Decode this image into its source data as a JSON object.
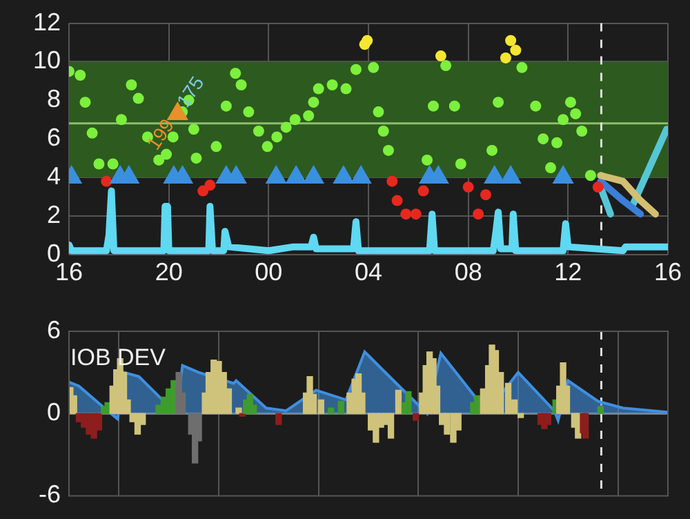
{
  "chart_data": [
    {
      "type": "scatter",
      "xlim": [
        16,
        40
      ],
      "ylim": [
        0,
        12
      ],
      "xticks": [
        {
          "value": 16,
          "label": "16"
        },
        {
          "value": 20,
          "label": "20"
        },
        {
          "value": 24,
          "label": "00"
        },
        {
          "value": 28,
          "label": "04"
        },
        {
          "value": 32,
          "label": "08"
        },
        {
          "value": 36,
          "label": "12"
        },
        {
          "value": 40,
          "label": "16"
        }
      ],
      "yticks": [
        0,
        2,
        4,
        6,
        8,
        10,
        12
      ],
      "grid": true,
      "bands": [
        {
          "axis": "y",
          "from": 4,
          "to": 10,
          "color": "#2d5a1f"
        }
      ],
      "ref_lines": [
        {
          "axis": "y",
          "value": 6.8,
          "color": "#8fbf6a"
        },
        {
          "axis": "x",
          "value": 37.33,
          "color": "#dddddd",
          "line_style": "dashed"
        }
      ],
      "annotations": [
        {
          "text": "199",
          "x": 19.7,
          "y": 6.2
        },
        {
          "text": "175",
          "x": 20.9,
          "y": 8.4
        }
      ],
      "series": [
        {
          "type": "line",
          "color": "#5fd8f2",
          "x": [
            16.0,
            16.1,
            17.5,
            17.6,
            17.7,
            17.8,
            19.8,
            19.85,
            19.95,
            20.0,
            21.6,
            21.65,
            21.75,
            22.2,
            22.25,
            22.4,
            24.0,
            25.0,
            25.7,
            25.8,
            25.9,
            27.4,
            27.5,
            27.6,
            30.45,
            30.55,
            30.65,
            33.0,
            33.1,
            33.2,
            33.3,
            33.75,
            33.8,
            33.9,
            35.8,
            35.9,
            36.0,
            38.2,
            38.3,
            40.0
          ],
          "values": [
            0.5,
            0.2,
            0.2,
            1.0,
            3.3,
            0.2,
            0.2,
            2.5,
            2.5,
            0.2,
            0.2,
            2.5,
            0.2,
            0.2,
            1.2,
            0.4,
            0.2,
            0.4,
            0.4,
            0.9,
            0.3,
            0.3,
            1.7,
            0.2,
            0.2,
            2.1,
            0.2,
            0.2,
            1.1,
            2.2,
            0.3,
            0.3,
            2.1,
            0.2,
            0.2,
            1.6,
            0.4,
            0.2,
            0.4,
            0.4
          ]
        },
        {
          "type": "scatter",
          "marker": "triangle",
          "color": "#3b8fe0",
          "x": [
            16.1,
            18.05,
            18.4,
            20.2,
            20.55,
            22.3,
            22.7,
            24.3,
            25.1,
            25.8,
            27.0,
            27.7,
            30.45,
            30.8,
            33.05,
            33.7,
            35.8
          ],
          "values": [
            4,
            4,
            4,
            4,
            4,
            4,
            4,
            4,
            4,
            4,
            4,
            4,
            4,
            4,
            4,
            4,
            4
          ]
        },
        {
          "type": "scatter",
          "marker": "triangle",
          "color": "#e8902a",
          "x": [
            20.35
          ],
          "values": [
            7.3
          ]
        },
        {
          "type": "scatter",
          "marker": "circle",
          "x": [
            16.0,
            16.45,
            16.65,
            16.93,
            17.2,
            17.5,
            17.76,
            18.1,
            18.5,
            18.78,
            19.15,
            19.6,
            19.9,
            20.17,
            20.54,
            20.8,
            21.0,
            21.1,
            21.37,
            21.65,
            21.9,
            22.3,
            22.67,
            22.9,
            23.2,
            23.6,
            23.95,
            24.33,
            24.7,
            25.06,
            25.6,
            25.8,
            26.0,
            26.55,
            27.1,
            27.5,
            27.85,
            27.95,
            28.2,
            28.4,
            28.6,
            28.8,
            28.95,
            29.15,
            29.5,
            29.9,
            30.2,
            30.35,
            30.6,
            30.9,
            31.1,
            31.45,
            31.7,
            32.0,
            32.4,
            32.7,
            32.95,
            33.2,
            33.5,
            33.7,
            33.9,
            34.15,
            34.7,
            35.0,
            35.3,
            35.55,
            35.8,
            36.1,
            36.3,
            36.55,
            36.9,
            37.2
          ],
          "values": [
            9.5,
            9.3,
            7.9,
            6.3,
            4.7,
            3.8,
            4.7,
            7.0,
            8.8,
            8.1,
            6.1,
            4.9,
            5.2,
            6.1,
            7.4,
            8.0,
            6.5,
            5.0,
            3.3,
            3.6,
            5.6,
            7.7,
            9.4,
            8.8,
            7.4,
            6.4,
            5.6,
            6.1,
            6.6,
            7.0,
            7.2,
            7.9,
            8.6,
            8.8,
            8.6,
            9.6,
            10.9,
            11.1,
            9.7,
            7.4,
            6.4,
            5.4,
            3.8,
            2.8,
            2.1,
            2.1,
            3.3,
            4.9,
            7.7,
            10.3,
            9.8,
            7.7,
            4.7,
            3.5,
            2.1,
            3.1,
            5.4,
            7.9,
            10.2,
            11.1,
            10.6,
            9.7,
            7.7,
            6.0,
            4.5,
            5.8,
            7.0,
            7.9,
            7.3,
            6.4,
            4.1,
            3.5
          ],
          "colors": [
            "#7cf03c",
            "#7cf03c",
            "#7cf03c",
            "#7cf03c",
            "#7cf03c",
            "#e8281e",
            "#7cf03c",
            "#7cf03c",
            "#7cf03c",
            "#7cf03c",
            "#7cf03c",
            "#7cf03c",
            "#7cf03c",
            "#7cf03c",
            "#7cf03c",
            "#7cf03c",
            "#7cf03c",
            "#7cf03c",
            "#e8281e",
            "#e8281e",
            "#7cf03c",
            "#7cf03c",
            "#7cf03c",
            "#7cf03c",
            "#7cf03c",
            "#7cf03c",
            "#7cf03c",
            "#7cf03c",
            "#7cf03c",
            "#7cf03c",
            "#7cf03c",
            "#7cf03c",
            "#7cf03c",
            "#7cf03c",
            "#7cf03c",
            "#7cf03c",
            "#f5e632",
            "#f5e632",
            "#7cf03c",
            "#7cf03c",
            "#7cf03c",
            "#7cf03c",
            "#e8281e",
            "#e8281e",
            "#e8281e",
            "#e8281e",
            "#e8281e",
            "#7cf03c",
            "#7cf03c",
            "#f5e632",
            "#7cf03c",
            "#7cf03c",
            "#7cf03c",
            "#e8281e",
            "#e8281e",
            "#e8281e",
            "#7cf03c",
            "#7cf03c",
            "#f5e632",
            "#f5e632",
            "#f5e632",
            "#7cf03c",
            "#7cf03c",
            "#7cf03c",
            "#7cf03c",
            "#7cf03c",
            "#7cf03c",
            "#7cf03c",
            "#7cf03c",
            "#7cf03c",
            "#7cf03c",
            "#e8281e"
          ]
        },
        {
          "type": "line",
          "color": "#d2bf72",
          "x": [
            37.3,
            38.2,
            38.9,
            39.5
          ],
          "values": [
            4.1,
            3.8,
            2.8,
            2.1
          ]
        },
        {
          "type": "line",
          "color": "#3b7fd8",
          "x": [
            37.3,
            38.2,
            38.9
          ],
          "values": [
            3.8,
            2.8,
            2.1
          ]
        },
        {
          "type": "line",
          "color": "#56c6d6",
          "x": [
            37.3,
            37.7,
            38.3,
            38.6,
            39.95
          ],
          "values": [
            3.5,
            2.1,
            null,
            2.6,
            6.5
          ]
        }
      ]
    },
    {
      "type": "bar",
      "xlim": [
        16,
        40
      ],
      "ylim": [
        -6,
        6
      ],
      "yticks": [
        -6,
        0,
        6
      ],
      "xticks": [
        {
          "value": 16,
          "label": null
        },
        {
          "value": 20,
          "label": null
        },
        {
          "value": 24,
          "label": null
        },
        {
          "value": 28,
          "label": null
        },
        {
          "value": 32,
          "label": null
        },
        {
          "value": 36,
          "label": null
        },
        {
          "value": 40,
          "label": null
        }
      ],
      "tick_labels": "y",
      "grid": "x",
      "ref_lines": [
        {
          "axis": "y",
          "value": 0,
          "color": "#888888"
        },
        {
          "axis": "x",
          "value": 37.33,
          "color": "#dddddd",
          "line_style": "dashed"
        }
      ],
      "annotations": [
        "IOB DEV"
      ],
      "series": [
        {
          "type": "bar",
          "x": [
            16.05,
            16.2,
            16.4,
            16.6,
            16.8,
            17.0,
            17.2,
            17.4,
            17.55,
            17.75,
            17.9,
            18.05,
            18.2,
            18.35,
            18.55,
            18.75,
            18.95,
            19.6,
            19.8,
            20.0,
            20.2,
            20.4,
            20.55,
            20.9,
            21.05,
            21.2,
            21.45,
            21.6,
            21.8,
            22.0,
            22.2,
            22.4,
            22.8,
            22.95,
            23.1,
            23.25,
            23.4,
            24.4,
            25.5,
            25.65,
            25.8,
            26.1,
            26.5,
            26.9,
            27.25,
            27.45,
            27.6,
            27.75,
            28.1,
            28.3,
            28.5,
            28.7,
            28.9,
            29.2,
            29.45,
            29.6,
            29.9,
            30.15,
            30.3,
            30.45,
            30.6,
            30.75,
            30.95,
            31.15,
            31.4,
            31.6,
            32.2,
            32.35,
            32.6,
            32.8,
            32.95,
            33.1,
            33.3,
            33.6,
            33.85,
            34.1,
            34.9,
            35.05,
            35.2,
            35.5,
            35.65,
            35.8,
            35.95,
            36.25,
            36.4,
            36.6,
            36.7,
            37.3
          ],
          "values": [
            1.9,
            1.3,
            -0.6,
            -1.0,
            -1.5,
            -1.8,
            -1.2,
            0.5,
            0.8,
            2.0,
            3.2,
            4.0,
            3.0,
            1.0,
            -0.6,
            -1.5,
            -0.8,
            0.6,
            1.2,
            1.8,
            2.4,
            3.0,
            1.5,
            -1.5,
            -3.6,
            -2.0,
            1.5,
            3.0,
            3.9,
            3.8,
            3.0,
            1.8,
            0.4,
            -0.2,
            1.0,
            1.4,
            0.6,
            -0.8,
            1.5,
            2.7,
            1.4,
            1.0,
            0.4,
            0.9,
            1.5,
            2.5,
            2.9,
            1.5,
            -1.2,
            -2.1,
            -1.0,
            -0.8,
            -1.8,
            1.7,
            0.8,
            1.6,
            -0.5,
            1.5,
            3.5,
            4.5,
            4.0,
            2.0,
            -0.8,
            -1.5,
            -2.1,
            -1.2,
            0.8,
            1.3,
            1.8,
            3.5,
            5.0,
            4.6,
            3.0,
            2.2,
            1.0,
            -0.3,
            -0.8,
            -1.1,
            -0.8,
            1.0,
            2.0,
            3.7,
            2.0,
            -1.0,
            -1.8,
            -1.4,
            -1.8,
            0.5
          ],
          "colors": [
            "#cfc37c",
            "#cfc37c",
            "#8e1d1d",
            "#8e1d1d",
            "#8e1d1d",
            "#8e1d1d",
            "#8e1d1d",
            "#3f9c2c",
            "#3f9c2c",
            "#cfc37c",
            "#cfc37c",
            "#cfc37c",
            "#cfc37c",
            "#cfc37c",
            "#cfc37c",
            "#cfc37c",
            "#cfc37c",
            "#3f9c2c",
            "#3f9c2c",
            "#3f9c2c",
            "#3f9c2c",
            "#6e6e6e",
            "#6e6e6e",
            "#6e6e6e",
            "#6e6e6e",
            "#6e6e6e",
            "#cfc37c",
            "#cfc37c",
            "#cfc37c",
            "#cfc37c",
            "#cfc37c",
            "#cfc37c",
            "#cfc37c",
            "#8e1d1d",
            "#3f9c2c",
            "#3f9c2c",
            "#3f9c2c",
            "#8e1d1d",
            "#cfc37c",
            "#cfc37c",
            "#cfc37c",
            "#cfc37c",
            "#3f9c2c",
            "#3f9c2c",
            "#cfc37c",
            "#cfc37c",
            "#cfc37c",
            "#cfc37c",
            "#cfc37c",
            "#cfc37c",
            "#cfc37c",
            "#cfc37c",
            "#cfc37c",
            "#cfc37c",
            "#3f9c2c",
            "#3f9c2c",
            "#8e1d1d",
            "#cfc37c",
            "#cfc37c",
            "#cfc37c",
            "#cfc37c",
            "#cfc37c",
            "#cfc37c",
            "#cfc37c",
            "#cfc37c",
            "#cfc37c",
            "#3f9c2c",
            "#3f9c2c",
            "#cfc37c",
            "#cfc37c",
            "#cfc37c",
            "#cfc37c",
            "#cfc37c",
            "#cfc37c",
            "#cfc37c",
            "#cfc37c",
            "#8e1d1d",
            "#8e1d1d",
            "#8e1d1d",
            "#3f9c2c",
            "#cfc37c",
            "#cfc37c",
            "#cfc37c",
            "#cfc37c",
            "#cfc37c",
            "#8e1d1d",
            "#8e1d1d",
            "#3f9c2c"
          ]
        },
        {
          "type": "area",
          "color": "#3f8fe0",
          "x": [
            16.0,
            16.4,
            17.55,
            17.95,
            18.2,
            18.8,
            19.8,
            20.3,
            20.55,
            21.2,
            22.6,
            22.7,
            23.9,
            24.7,
            25.9,
            27.1,
            27.85,
            28.95,
            30.35,
            30.9,
            32.5,
            32.8,
            34.0,
            35.45,
            35.6,
            36.0,
            37.2,
            38.2,
            40.0
          ],
          "values": [
            2.3,
            2.0,
            0.2,
            -0.4,
            3.0,
            2.7,
            0.9,
            0.2,
            3.5,
            3.0,
            2.2,
            2.4,
            0.4,
            0.2,
            1.7,
            1.0,
            4.5,
            2.5,
            0.0,
            4.4,
            0.7,
            0.2,
            3.0,
            0.2,
            -0.5,
            2.4,
            0.9,
            0.4,
            0.1
          ]
        }
      ]
    }
  ]
}
